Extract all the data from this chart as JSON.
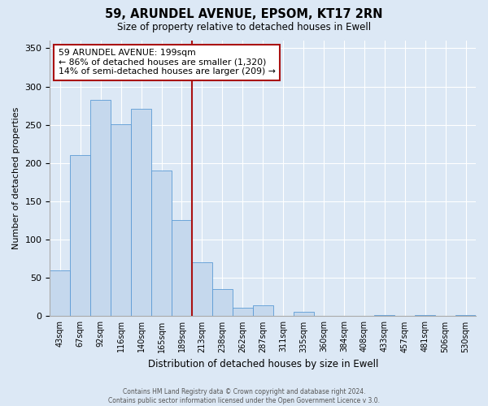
{
  "title": "59, ARUNDEL AVENUE, EPSOM, KT17 2RN",
  "subtitle": "Size of property relative to detached houses in Ewell",
  "xlabel": "Distribution of detached houses by size in Ewell",
  "ylabel": "Number of detached properties",
  "bin_labels": [
    "43sqm",
    "67sqm",
    "92sqm",
    "116sqm",
    "140sqm",
    "165sqm",
    "189sqm",
    "213sqm",
    "238sqm",
    "262sqm",
    "287sqm",
    "311sqm",
    "335sqm",
    "360sqm",
    "384sqm",
    "408sqm",
    "433sqm",
    "457sqm",
    "481sqm",
    "506sqm",
    "530sqm"
  ],
  "bar_values": [
    60,
    210,
    283,
    251,
    271,
    190,
    126,
    70,
    35,
    11,
    14,
    0,
    6,
    0,
    0,
    0,
    1,
    0,
    1,
    0,
    1
  ],
  "bar_color": "#c5d8ed",
  "bar_edge_color": "#5b9bd5",
  "vline_color": "#aa1111",
  "annotation_text": "59 ARUNDEL AVENUE: 199sqm\n← 86% of detached houses are smaller (1,320)\n14% of semi-detached houses are larger (209) →",
  "annotation_box_color": "#ffffff",
  "annotation_box_edge": "#aa1111",
  "ylim": [
    0,
    360
  ],
  "yticks": [
    0,
    50,
    100,
    150,
    200,
    250,
    300,
    350
  ],
  "footer_line1": "Contains HM Land Registry data © Crown copyright and database right 2024.",
  "footer_line2": "Contains public sector information licensed under the Open Government Licence v 3.0.",
  "background_color": "#dce8f5",
  "plot_background": "#dce8f5"
}
